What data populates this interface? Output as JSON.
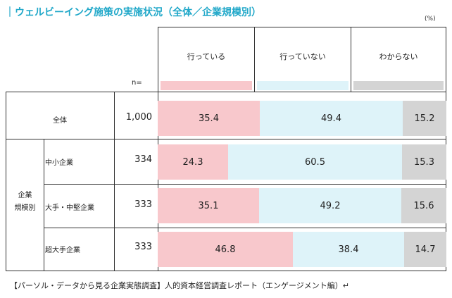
{
  "title": "｜ウェルビーイング施策の実施状況（全体／企業規模別）",
  "unit": "(%)",
  "n_label": "n=",
  "footer": "【パーソル・データから見る企業実態調査】人的資本経営調査レポート（エンゲージメント編）↵",
  "colors": {
    "yes": "#f8c8cc",
    "no": "#def3f9",
    "unknown": "#d4d4d4",
    "title": "#21a8c9"
  },
  "chart_data": {
    "type": "bar",
    "stacked": true,
    "orientation": "horizontal",
    "series": [
      {
        "name": "行っている",
        "values": [
          35.4,
          24.3,
          35.1,
          46.8
        ]
      },
      {
        "name": "行っていない",
        "values": [
          49.4,
          60.5,
          49.2,
          38.4
        ]
      },
      {
        "name": "わからない",
        "values": [
          15.2,
          15.3,
          15.6,
          14.7
        ]
      }
    ],
    "categories": [
      "全体",
      "中小企業",
      "大手・中堅企業",
      "超大手企業"
    ],
    "n": [
      "1,000",
      "334",
      "333",
      "333"
    ],
    "group_label": "企業\n規模別",
    "xlim": [
      0,
      100
    ]
  }
}
